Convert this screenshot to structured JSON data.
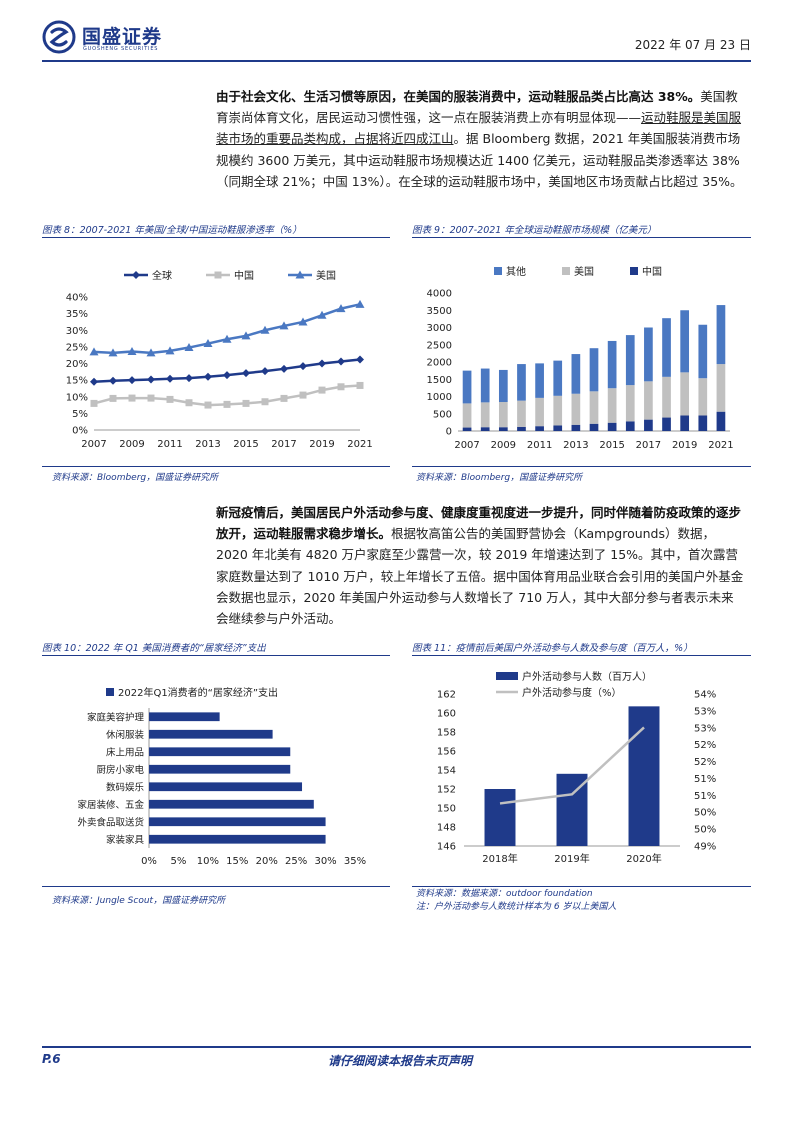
{
  "header": {
    "logo_text": "国盛证券",
    "logo_sub": "GUOSHENG SECURITIES",
    "date": "2022 年 07 月 23 日"
  },
  "para1": {
    "lead": "由于社会文化、生活习惯等原因，在美国的服装消费中，运动鞋服品类占比高达 38%。",
    "body_a": "美国教育崇尚体育文化，居民运动习惯性强，这一点在服装消费上亦有明显体现——",
    "body_ul": "运动鞋服是美国服装市场的重要品类构成，占据将近四成江山",
    "body_b": "。据 Bloomberg 数据，2021 年美国服装消费市场规模约 3600 万美元，其中运动鞋服市场规模达近 1400 亿美元，运动鞋服品类渗透率达 38%（同期全球 21%；中国 13%）。在全球的运动鞋服市场中，美国地区市场贡献占比超过 35%。"
  },
  "para2": {
    "lead": "新冠疫情后，美国居民户外活动参与度、健康度重视度进一步提升，同时伴随着防疫政策的逐步放开，运动鞋服需求稳步增长。",
    "body": "根据牧高笛公告的美国野营协会（Kampgrounds）数据，2020 年北美有 4820 万户家庭至少露营一次，较 2019 年增速达到了 15%。其中，首次露营家庭数量达到了 1010 万户，较上年增长了五倍。据中国体育用品业联合会引用的美国户外基金会数据也显示，2020 年美国户外运动参与人数增长了 710 万人，其中大部分参与者表示未来会继续参与户外活动。"
  },
  "figures": {
    "fig8_title": "图表 8：2007-2021 年美国/全球/中国运动鞋服渗透率（%）",
    "fig9_title": "图表 9：2007-2021 年全球运动鞋服市场规模（亿美元）",
    "src_a": "资料来源：Bloomberg，国盛证券研究所",
    "src_b": "资料来源：Bloomberg，国盛证券研究所",
    "fig10_title": "图表 10：2022 年 Q1 美国消费者的“居家经济”支出",
    "fig11_title": "图表 11：疫情前后美国户外活动参与人数及参与度（百万人，%）",
    "src_c": "资料来源：Jungle Scout，国盛证券研究所",
    "src_d": "资料来源：数据来源：outdoor foundation",
    "note_d": "注：户外活动参与人数统计样本为 6 岁以上美国人"
  },
  "footer": {
    "page": "P.6",
    "note": "请仔细阅读本报告末页声明"
  },
  "chart_data": [
    {
      "type": "line",
      "x": [
        2007,
        2008,
        2009,
        2010,
        2011,
        2012,
        2013,
        2014,
        2015,
        2016,
        2017,
        2018,
        2019,
        2020,
        2021
      ],
      "xticks": [
        "2007",
        "2009",
        "2011",
        "2013",
        "2015",
        "2017",
        "2019",
        "2021"
      ],
      "yticks": [
        "0%",
        "5%",
        "10%",
        "15%",
        "20%",
        "25%",
        "30%",
        "35%",
        "40%"
      ],
      "ylim": [
        0,
        40
      ],
      "legend_position": "top",
      "series": [
        {
          "name": "全球",
          "color": "#1f3a8a",
          "marker": "diamond",
          "values": [
            14.5,
            14.8,
            15,
            15.2,
            15.4,
            15.6,
            16,
            16.5,
            17.1,
            17.7,
            18.4,
            19.2,
            20,
            20.6,
            21.2
          ]
        },
        {
          "name": "中国",
          "color": "#c0c0c0",
          "marker": "square",
          "values": [
            8,
            9.5,
            9.6,
            9.6,
            9.2,
            8.2,
            7.5,
            7.7,
            8,
            8.5,
            9.5,
            10.5,
            12,
            13,
            13.4
          ]
        },
        {
          "name": "美国",
          "color": "#4a78c2",
          "marker": "triangle",
          "values": [
            23.5,
            23.2,
            23.6,
            23.2,
            23.8,
            24.8,
            26,
            27.3,
            28.3,
            30,
            31.3,
            32.5,
            34.5,
            36.5,
            37.8
          ]
        }
      ]
    },
    {
      "type": "bar",
      "stacked": true,
      "categories": [
        "2007",
        "2008",
        "2009",
        "2010",
        "2011",
        "2012",
        "2013",
        "2014",
        "2015",
        "2016",
        "2017",
        "2018",
        "2019",
        "2020",
        "2021"
      ],
      "xticks": [
        "2007",
        "2009",
        "2011",
        "2013",
        "2015",
        "2017",
        "2019",
        "2021"
      ],
      "yticks": [
        "0",
        "500",
        "1000",
        "1500",
        "2000",
        "2500",
        "3000",
        "3500",
        "4000"
      ],
      "ylim": [
        0,
        4000
      ],
      "legend_position": "top",
      "series": [
        {
          "name": "中国",
          "color": "#1f3a8a",
          "values": [
            100,
            110,
            110,
            120,
            140,
            160,
            180,
            210,
            240,
            280,
            330,
            390,
            450,
            450,
            560
          ]
        },
        {
          "name": "美国",
          "color": "#c0c0c0",
          "values": [
            700,
            720,
            730,
            760,
            820,
            860,
            900,
            940,
            1000,
            1050,
            1110,
            1180,
            1250,
            1080,
            1380
          ]
        },
        {
          "name": "其他",
          "color": "#4a78c2",
          "values": [
            950,
            980,
            930,
            1060,
            1000,
            1020,
            1150,
            1250,
            1370,
            1450,
            1560,
            1700,
            1800,
            1550,
            1710
          ]
        }
      ]
    },
    {
      "type": "bar",
      "orientation": "horizontal",
      "title": "2022年Q1消费者的“居家经济”支出",
      "categories": [
        "家庭美容护理",
        "休闲服装",
        "床上用品",
        "厨房小家电",
        "数码娱乐",
        "家居装修、五金",
        "外卖食品取送货",
        "家装家具"
      ],
      "values": [
        12,
        21,
        24,
        24,
        26,
        28,
        30,
        30
      ],
      "xticks": [
        "0%",
        "5%",
        "10%",
        "15%",
        "20%",
        "25%",
        "30%",
        "35%"
      ],
      "xlim": [
        0,
        35
      ],
      "color": "#1f3a8a",
      "legend_position": "top-left"
    },
    {
      "type": "bar",
      "categories": [
        "2018年",
        "2019年",
        "2020年"
      ],
      "series": [
        {
          "name": "户外活动参与人数（百万人）",
          "type": "bar",
          "color": "#1f3a8a",
          "axis": "left",
          "values": [
            152.0,
            153.6,
            160.7
          ]
        },
        {
          "name": "户外活动参与度（%）",
          "type": "line",
          "color": "#c0c0c0",
          "axis": "right",
          "values": [
            50.4,
            50.7,
            52.9
          ]
        }
      ],
      "ylim_left": [
        146,
        162
      ],
      "yticks_left": [
        "146",
        "148",
        "150",
        "152",
        "154",
        "156",
        "158",
        "160",
        "162"
      ],
      "ylim_right": [
        49.0,
        54.0
      ],
      "yticks_right": [
        "49%",
        "50%",
        "50%",
        "51%",
        "51%",
        "52%",
        "52%",
        "53%",
        "53%",
        "54%"
      ],
      "legend_position": "top"
    }
  ]
}
